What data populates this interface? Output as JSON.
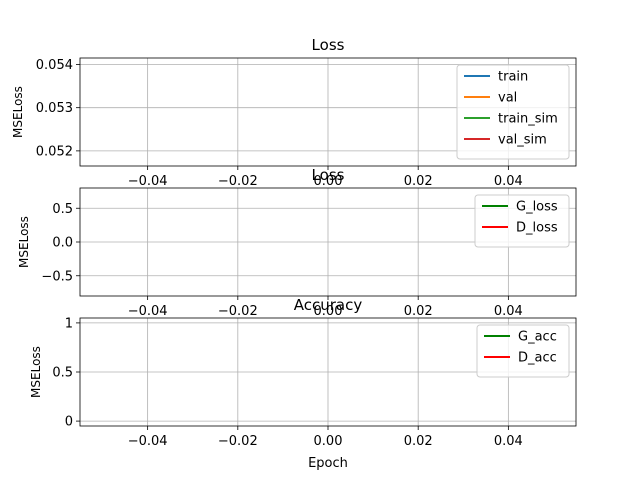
{
  "chart_data": [
    {
      "type": "line",
      "title": "Loss",
      "xlabel": "",
      "ylabel": "MSELoss",
      "xlim": [
        -0.055,
        0.055
      ],
      "ylim": [
        0.05165,
        0.05415
      ],
      "x_ticks": [
        -0.04,
        -0.02,
        0.0,
        0.02,
        0.04
      ],
      "x_tick_labels": [
        "−0.04",
        "−0.02",
        "0.00",
        "0.02",
        "0.04"
      ],
      "y_ticks": [
        0.052,
        0.053,
        0.054
      ],
      "y_tick_labels": [
        "0.052",
        "0.053",
        "0.054"
      ],
      "grid": true,
      "legend_position": "top-right",
      "series": [
        {
          "name": "train",
          "color": "#1f77b4",
          "x": [],
          "values": []
        },
        {
          "name": "val",
          "color": "#ff7f0e",
          "x": [],
          "values": []
        },
        {
          "name": "train_sim",
          "color": "#2ca02c",
          "x": [],
          "values": []
        },
        {
          "name": "val_sim",
          "color": "#d62728",
          "x": [],
          "values": []
        }
      ]
    },
    {
      "type": "line",
      "title": "Loss",
      "xlabel": "",
      "ylabel": "MSELoss",
      "xlim": [
        -0.055,
        0.055
      ],
      "ylim": [
        -0.8,
        0.8
      ],
      "x_ticks": [
        -0.04,
        -0.02,
        0.0,
        0.02,
        0.04
      ],
      "x_tick_labels": [
        "−0.04",
        "−0.02",
        "0.00",
        "0.02",
        "0.04"
      ],
      "y_ticks": [
        -0.5,
        0.0,
        0.5
      ],
      "y_tick_labels": [
        "−0.5",
        "0.0",
        "0.5"
      ],
      "grid": true,
      "legend_position": "top-right",
      "series": [
        {
          "name": "G_loss",
          "color": "#008000",
          "x": [],
          "values": []
        },
        {
          "name": "D_loss",
          "color": "#ff0000",
          "x": [],
          "values": []
        }
      ]
    },
    {
      "type": "line",
      "title": "Accuracy",
      "xlabel": "Epoch",
      "ylabel": "MSELoss",
      "xlim": [
        -0.055,
        0.055
      ],
      "ylim": [
        -0.05,
        1.05
      ],
      "x_ticks": [
        -0.04,
        -0.02,
        0.0,
        0.02,
        0.04
      ],
      "x_tick_labels": [
        "−0.04",
        "−0.02",
        "0.00",
        "0.02",
        "0.04"
      ],
      "y_ticks": [
        0,
        0.5,
        1
      ],
      "y_tick_labels": [
        "0",
        "0.5",
        "1"
      ],
      "grid": true,
      "legend_position": "top-right",
      "series": [
        {
          "name": "G_acc",
          "color": "#008000",
          "x": [],
          "values": []
        },
        {
          "name": "D_acc",
          "color": "#ff0000",
          "x": [],
          "values": []
        }
      ]
    }
  ]
}
